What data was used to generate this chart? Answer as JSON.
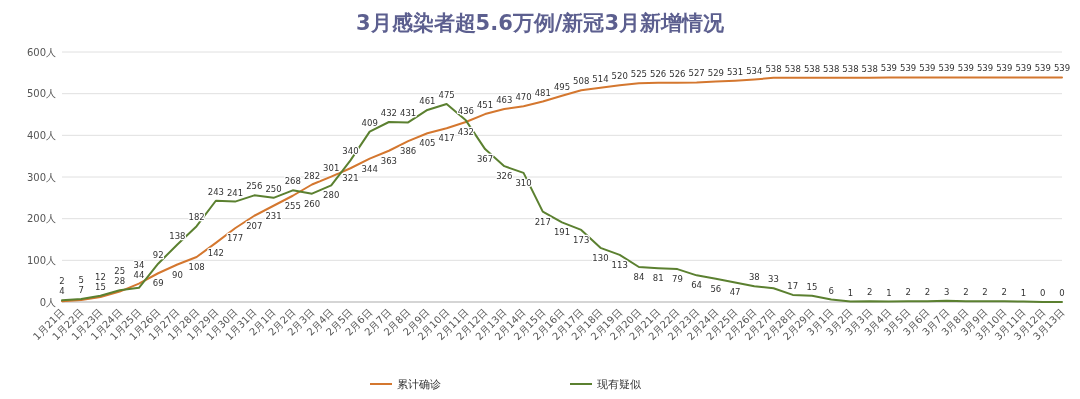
{
  "chart_data": {
    "type": "line",
    "title": "3月感染者超5.6万例/新冠3月新增情况",
    "categories": [
      "1月21日",
      "1月22日",
      "1月23日",
      "1月24日",
      "1月25日",
      "1月26日",
      "1月27日",
      "1月28日",
      "1月29日",
      "1月30日",
      "1月31日",
      "2月1日",
      "2月2日",
      "2月3日",
      "2月4日",
      "2月5日",
      "2月6日",
      "2月7日",
      "2月8日",
      "2月9日",
      "2月10日",
      "2月11日",
      "2月12日",
      "2月13日",
      "2月14日",
      "2月15日",
      "2月16日",
      "2月17日",
      "2月18日",
      "2月19日",
      "2月20日",
      "2月21日",
      "2月22日",
      "2月23日",
      "2月24日",
      "2月25日",
      "2月26日",
      "2月27日",
      "2月28日",
      "2月29日",
      "3月1日",
      "3月2日",
      "3月3日",
      "3月4日",
      "3月5日",
      "3月6日",
      "3月7日",
      "3月8日",
      "3月9日",
      "3月10日",
      "3月11日",
      "3月12日",
      "3月13日"
    ],
    "series": [
      {
        "name": "累计确诊",
        "color": "#d4772f",
        "values": [
          2,
          5,
          12,
          25,
          44,
          69,
          90,
          108,
          142,
          177,
          207,
          231,
          255,
          282,
          301,
          321,
          344,
          363,
          386,
          405,
          417,
          432,
          451,
          463,
          470,
          481,
          495,
          508,
          514,
          520,
          525,
          526,
          526,
          527,
          529,
          531,
          534,
          538,
          538,
          538,
          538,
          538,
          538,
          539,
          539,
          539,
          539,
          539,
          539,
          539,
          539,
          539,
          539
        ]
      },
      {
        "name": "现有疑似",
        "color": "#5b8030",
        "values": [
          4,
          7,
          15,
          28,
          34,
          92,
          138,
          182,
          243,
          241,
          256,
          250,
          268,
          260,
          280,
          340,
          409,
          432,
          431,
          461,
          475,
          436,
          367,
          326,
          310,
          217,
          191,
          173,
          130,
          113,
          84,
          81,
          79,
          64,
          56,
          47,
          38,
          33,
          17,
          15,
          6,
          1,
          2,
          1,
          2,
          2,
          3,
          2,
          2,
          2,
          1,
          0,
          0
        ]
      }
    ],
    "ylim": [
      0,
      600
    ],
    "yticks": [
      {
        "value": 0,
        "label": "0人"
      },
      {
        "value": 100,
        "label": "100人"
      },
      {
        "value": 200,
        "label": "200人"
      },
      {
        "value": 300,
        "label": "300人"
      },
      {
        "value": 400,
        "label": "400人"
      },
      {
        "value": 500,
        "label": "500人"
      },
      {
        "value": 600,
        "label": "600人"
      }
    ],
    "grid": "y",
    "legend": "bottom",
    "data_labels": true,
    "marker": "none",
    "line_style": "solid"
  }
}
